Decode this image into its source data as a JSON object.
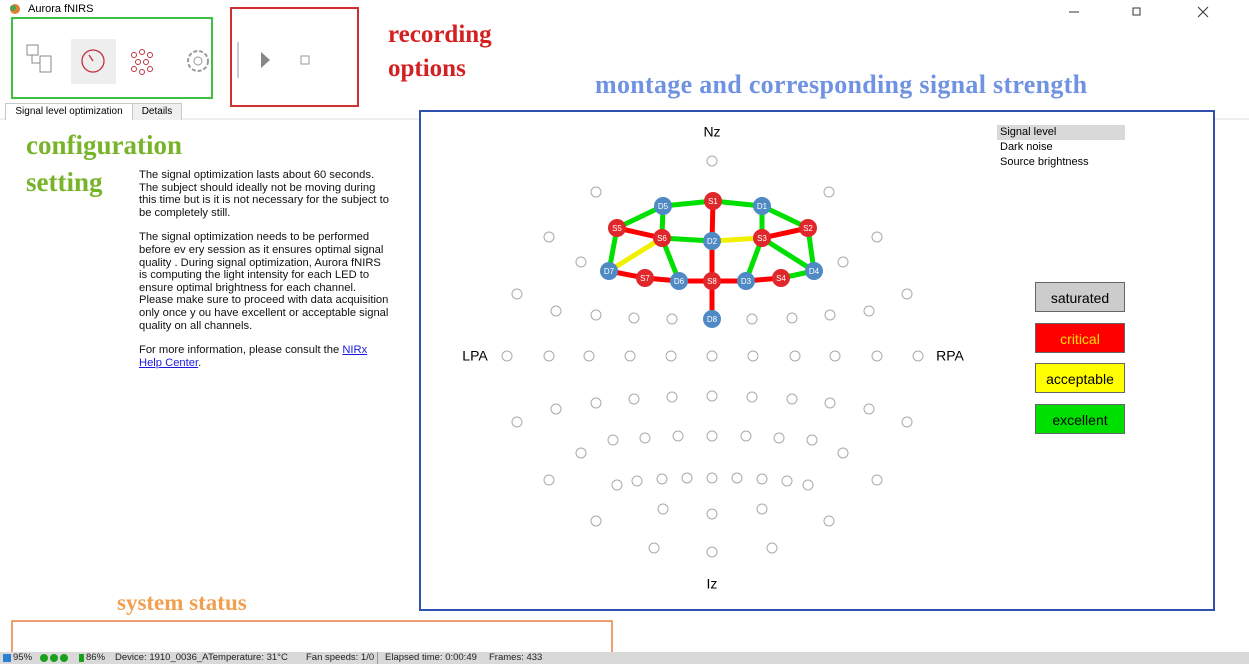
{
  "window": {
    "title": "Aurora fNIRS"
  },
  "annotations": {
    "recording": [
      "recording",
      "options"
    ],
    "configuration": [
      "configuration",
      "setting"
    ],
    "montage": "montage and corresponding signal strength",
    "status": "system status"
  },
  "tabs": [
    "Signal level optimization",
    "Details"
  ],
  "description": {
    "paragraphs": [
      "The signal optimization lasts about 60 seconds. The subject should ideally  not be moving during this time but is it is not necessary for the subject to be completely  still.",
      "The signal optimization needs to be performed before ev ery  session as it ensures optimal signal quality . During signal optimization, Aurora fNIRS is computing the light intensity for each LED  to ensure optimal brightness for each channel. Please make sure to proceed with data acquisition only  once y ou have excellent or acceptable signal quality  on all channels."
    ],
    "more": {
      "text": "For more information, please consult the ",
      "link": "NIRx Help Center",
      "end": "."
    }
  },
  "montage": {
    "landmarks": {
      "nz": "Nz",
      "lpa": "LPA",
      "rpa": "RPA",
      "iz": "Iz"
    },
    "optodes": [
      {
        "label": "S1",
        "color": "#e0282c"
      },
      {
        "label": "D1",
        "color": "#4f8ac4"
      },
      {
        "label": "S2",
        "color": "#e0282c"
      },
      {
        "label": "D4",
        "color": "#4f8ac4"
      },
      {
        "label": "S4",
        "color": "#e0282c"
      },
      {
        "label": "D3",
        "color": "#4f8ac4"
      },
      {
        "label": "S8",
        "color": "#e0282c"
      },
      {
        "label": "D6",
        "color": "#4f8ac4"
      },
      {
        "label": "S7",
        "color": "#e0282c"
      },
      {
        "label": "D7",
        "color": "#4f8ac4"
      },
      {
        "label": "S5",
        "color": "#e0282c"
      },
      {
        "label": "D5",
        "color": "#4f8ac4"
      },
      {
        "label": "S6",
        "color": "#e0282c"
      },
      {
        "label": "D2",
        "color": "#4f8ac4"
      },
      {
        "label": "S3",
        "color": "#e0282c"
      },
      {
        "label": "D8",
        "color": "#4f8ac4"
      }
    ],
    "channels": [
      {
        "from": "S1",
        "to": "D5",
        "color": "#00e000"
      },
      {
        "from": "S1",
        "to": "D1",
        "color": "#00e000"
      },
      {
        "from": "D1",
        "to": "S2",
        "color": "#00e000"
      },
      {
        "from": "D5",
        "to": "S5",
        "color": "#00e000"
      },
      {
        "from": "S5",
        "to": "D7",
        "color": "#00e000"
      },
      {
        "from": "S5",
        "to": "S6",
        "color": "#ff0000"
      },
      {
        "from": "S6",
        "to": "D7",
        "color": "#f0f000"
      },
      {
        "from": "S6",
        "to": "D5",
        "color": "#00e000"
      },
      {
        "from": "S6",
        "to": "D2",
        "color": "#00e000"
      },
      {
        "from": "D2",
        "to": "S3",
        "color": "#f0f000"
      },
      {
        "from": "S3",
        "to": "D1",
        "color": "#00e000"
      },
      {
        "from": "S3",
        "to": "S2",
        "color": "#ff0000"
      },
      {
        "from": "S2",
        "to": "D4",
        "color": "#00e000"
      },
      {
        "from": "S3",
        "to": "D4",
        "color": "#00e000"
      },
      {
        "from": "D4",
        "to": "S4",
        "color": "#00e000"
      },
      {
        "from": "S1",
        "to": "D2",
        "color": "#ff0000"
      },
      {
        "from": "D2",
        "to": "S8",
        "color": "#ff0000"
      },
      {
        "from": "S8",
        "to": "D8",
        "color": "#ff0000"
      },
      {
        "from": "D7",
        "to": "S7",
        "color": "#ff0000"
      },
      {
        "from": "S7",
        "to": "D6",
        "color": "#ff0000"
      },
      {
        "from": "D6",
        "to": "S8",
        "color": "#ff0000"
      },
      {
        "from": "S8",
        "to": "D3",
        "color": "#ff0000"
      },
      {
        "from": "D3",
        "to": "S4",
        "color": "#ff0000"
      },
      {
        "from": "S6",
        "to": "D6",
        "color": "#00e000"
      },
      {
        "from": "S3",
        "to": "D3",
        "color": "#00e000"
      }
    ]
  },
  "view_menu": [
    "Signal level",
    "Dark noise",
    "Source brightness"
  ],
  "legend": [
    {
      "label": "saturated",
      "color": "#cccccc",
      "text_color": "#000000"
    },
    {
      "label": "critical",
      "color": "#ff0000",
      "text_color": "#ffe000"
    },
    {
      "label": "acceptable",
      "color": "#ffff00",
      "text_color": "#000000"
    },
    {
      "label": "excellent",
      "color": "#00e000",
      "text_color": "#000000"
    }
  ],
  "status": {
    "signal": "95%",
    "battery": "86%",
    "device": "Device: 1910_0036_A",
    "temperature": "Temperature: 31°C",
    "fans": "Fan speeds: 1/0",
    "elapsed": "Elapsed time: 0:00:49",
    "frames": "Frames: 433"
  }
}
